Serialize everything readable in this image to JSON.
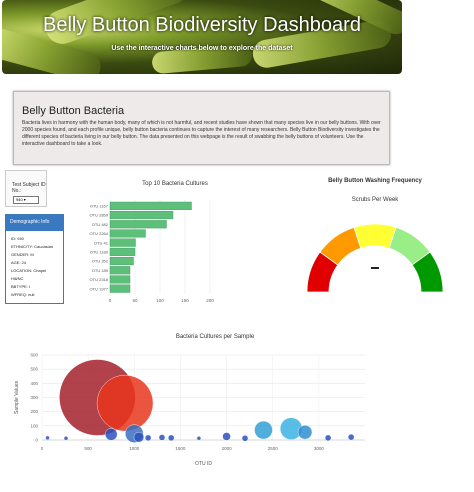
{
  "banner": {
    "title": "Belly Button Biodiversity Dashboard",
    "subtitle": "Use the interactive charts below to explore the dataset"
  },
  "intro": {
    "heading": "Belly Button Bacteria",
    "body": "Bacteria lives in harmony with the human body, many of which is not harmful, and recent studies have shown that many species live in our belly buttons. With over 2000 species found, and each profile unique, belly button bacteria continues to capture the interest of many researchers. Belly Button Biodiversity investigates the different species of bacteria living in our belly button. The data presented on this webpage is the result of swabbing the belly buttons of volunteers. Use the interactive dashboard to take a look."
  },
  "selector": {
    "label": "Test Subject ID No.:",
    "value": "940"
  },
  "demographic": {
    "title": "Demographic Info",
    "rows": [
      "ID: 940",
      "ETHNICITY: Caucasian",
      "GENDER: M",
      "AGE: 24",
      "LOCATION: Chapel Hill/NC",
      "BBTYPE: I",
      "WFREQ: null"
    ]
  },
  "bar_chart": {
    "title": "Top 10 Bacteria Cultures",
    "labels": [
      "OTU 1167",
      "OTU 2859",
      "OTU 482",
      "OTU 2264",
      "OTU 41",
      "OTU 1189",
      "OTU 352",
      "OTU 189",
      "OTU 2318",
      "OTU 1977"
    ],
    "values": [
      163,
      126,
      113,
      71,
      51,
      50,
      47,
      40,
      40,
      40
    ],
    "ticks": [
      "0",
      "50",
      "100",
      "150",
      "200"
    ],
    "color": "#5cbf7a"
  },
  "gauge": {
    "title": "Belly Button Washing Frequency",
    "subtitle": "Scrubs Per Week",
    "sections": [
      "#e00000",
      "#ff9900",
      "#ffff33",
      "#99ee88",
      "#009900"
    ]
  },
  "chart_data": {
    "type": "scatter",
    "title": "Bacteria Cultures per Sample",
    "xlabel": "OTU ID",
    "ylabel": "Sample Values",
    "xlim": [
      0,
      3500
    ],
    "ylim": [
      0,
      600
    ],
    "xticks": [
      "0",
      "500",
      "1000",
      "1500",
      "2000",
      "2500",
      "3000"
    ],
    "yticks": [
      "0",
      "100",
      "200",
      "300",
      "400",
      "500",
      "600"
    ],
    "points": [
      {
        "x": 600,
        "y": 300,
        "r": 38,
        "color": "#a3202a"
      },
      {
        "x": 900,
        "y": 260,
        "r": 28,
        "color": "#e8361c"
      },
      {
        "x": 750,
        "y": 40,
        "r": 6,
        "color": "#2a52be"
      },
      {
        "x": 1000,
        "y": 45,
        "r": 9,
        "color": "#3a6fc4"
      },
      {
        "x": 1050,
        "y": 20,
        "r": 5,
        "color": "#2a52be"
      },
      {
        "x": 1150,
        "y": 15,
        "r": 3,
        "color": "#2a52be"
      },
      {
        "x": 1300,
        "y": 18,
        "r": 3,
        "color": "#2a52be"
      },
      {
        "x": 1400,
        "y": 15,
        "r": 3,
        "color": "#2a52be"
      },
      {
        "x": 1700,
        "y": 12,
        "r": 2,
        "color": "#2a52be"
      },
      {
        "x": 2000,
        "y": 25,
        "r": 4,
        "color": "#2a52be"
      },
      {
        "x": 2200,
        "y": 12,
        "r": 3,
        "color": "#2a52be"
      },
      {
        "x": 2400,
        "y": 70,
        "r": 9,
        "color": "#33a0d6"
      },
      {
        "x": 2700,
        "y": 80,
        "r": 11,
        "color": "#3bb3e3"
      },
      {
        "x": 2850,
        "y": 55,
        "r": 7,
        "color": "#2f8ed0"
      },
      {
        "x": 3100,
        "y": 15,
        "r": 3,
        "color": "#2a52be"
      },
      {
        "x": 3350,
        "y": 20,
        "r": 3,
        "color": "#2a52be"
      },
      {
        "x": 60,
        "y": 15,
        "r": 2,
        "color": "#2a52be"
      },
      {
        "x": 260,
        "y": 12,
        "r": 2,
        "color": "#2a52be"
      }
    ]
  }
}
